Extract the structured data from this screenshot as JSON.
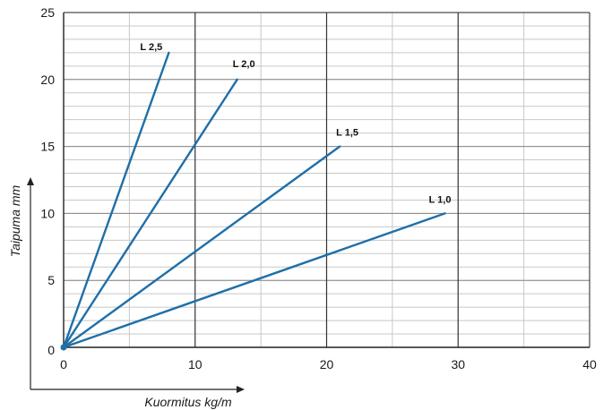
{
  "colors": {
    "series": "#1f6fa8",
    "grid": "#c8c8c8",
    "major_grid": "#333333",
    "axis": "#222222"
  },
  "chart_data": {
    "type": "line",
    "xlabel": "Kuormitus kg/m",
    "ylabel": "Taipuma mm",
    "xlim": [
      0,
      40
    ],
    "ylim": [
      0,
      25
    ],
    "x_ticks": [
      "0",
      "10",
      "20",
      "30",
      "40"
    ],
    "y_ticks": [
      "0",
      "5",
      "10",
      "15",
      "20",
      "25"
    ],
    "grid": true,
    "series": [
      {
        "name": "L 2,5",
        "x": [
          0,
          8
        ],
        "y": [
          0,
          22
        ]
      },
      {
        "name": "L 2,0",
        "x": [
          0,
          13.2
        ],
        "y": [
          0,
          20
        ]
      },
      {
        "name": "L 1,5",
        "x": [
          0,
          21
        ],
        "y": [
          0,
          15
        ]
      },
      {
        "name": "L 1,0",
        "x": [
          0,
          29
        ],
        "y": [
          0,
          10
        ]
      }
    ]
  }
}
